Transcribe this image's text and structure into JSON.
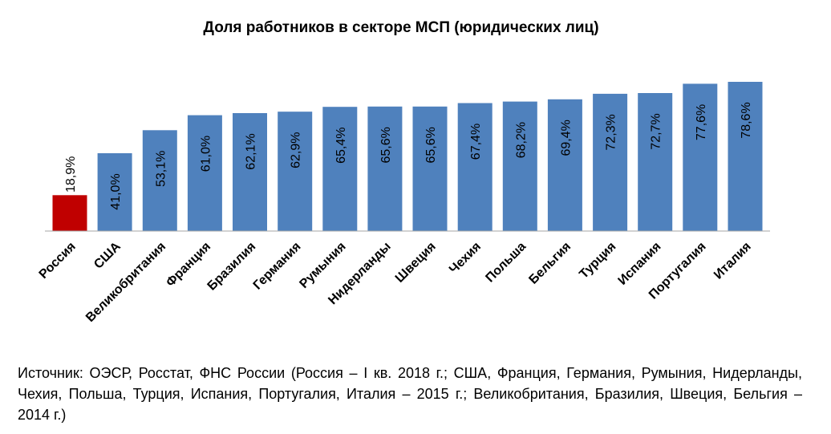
{
  "chart_data": {
    "type": "bar",
    "title": "Доля работников в секторе МСП (юридических лиц)",
    "categories": [
      "Россия",
      "США",
      "Великобритания",
      "Франция",
      "Бразилия",
      "Германия",
      "Румыния",
      "Нидерланды",
      "Швеция",
      "Чехия",
      "Польша",
      "Бельгия",
      "Турция",
      "Испания",
      "Португалия",
      "Италия"
    ],
    "values": [
      18.9,
      41.0,
      53.1,
      61.0,
      62.1,
      62.9,
      65.4,
      65.6,
      65.6,
      67.4,
      68.2,
      69.4,
      72.3,
      72.7,
      77.6,
      78.6
    ],
    "value_labels": [
      "18,9%",
      "41,0%",
      "53,1%",
      "61,0%",
      "62,1%",
      "62,9%",
      "65,4%",
      "65,6%",
      "65,6%",
      "67,4%",
      "68,2%",
      "69,4%",
      "72,3%",
      "72,7%",
      "77,6%",
      "78,6%"
    ],
    "colors": {
      "highlight": "#c00000",
      "default": "#4f81bd"
    },
    "highlight_index": 0,
    "ylim": [
      0,
      80
    ],
    "grid": false,
    "xlabel": "",
    "ylabel": ""
  },
  "footer": {
    "source": "Источник: ОЭСР, Росстат, ФНС России (Россия – I кв. 2018 г.; США, Франция, Германия, Румыния, Нидерланды, Чехия, Польша, Турция, Испания, Португалия, Италия – 2015 г.; Великобритания, Бразилия, Швеция, Бельгия – 2014 г.)"
  }
}
